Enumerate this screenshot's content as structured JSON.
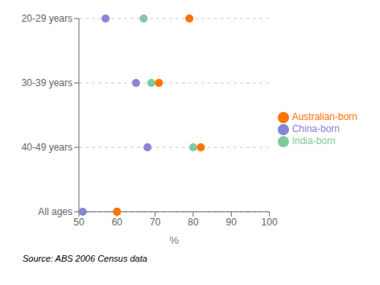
{
  "chart_data": {
    "type": "dot",
    "orientation": "horizontal",
    "categories": [
      "All ages",
      "40-49 years",
      "30-39 years",
      "20-29 years"
    ],
    "series": [
      {
        "name": "China-born",
        "marker": "circle",
        "values": [
          51,
          68,
          65,
          57
        ]
      },
      {
        "name": "India-born",
        "marker": "circle",
        "values": [
          60,
          80,
          69,
          67
        ]
      },
      {
        "name": "Australian-born",
        "marker": "circle",
        "values": [
          60,
          82,
          71,
          79
        ]
      }
    ],
    "x_label": "%",
    "xlim": [
      50,
      100
    ],
    "xticks": [
      50,
      60,
      70,
      80,
      90,
      100
    ],
    "grid": true,
    "legend": "right",
    "annotations": [
      "Source: ABS 2006 Census data"
    ]
  }
}
